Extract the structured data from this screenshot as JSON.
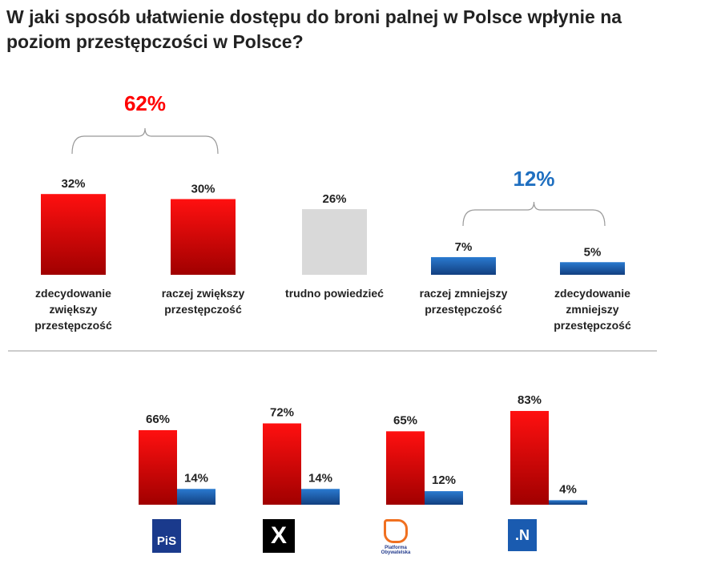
{
  "title": "W jaki sposób ułatwienie dostępu do broni palnej w Polsce wpłynie na poziom przestępczości w Polsce?",
  "chart_data": [
    {
      "type": "bar",
      "categories": [
        "zdecydowanie zwiększy przestępczość",
        "raczej zwiększy przestępczość",
        "trudno powiedzieć",
        "raczej zmniejszy przestępczość",
        "zdecydowanie zmniejszy przestępczość"
      ],
      "values": [
        32,
        30,
        26,
        7,
        5
      ],
      "value_labels": [
        "32%",
        "30%",
        "26%",
        "7%",
        "5%"
      ],
      "colors": [
        "#e00000",
        "#e00000",
        "#d9d9d9",
        "#1f5fb0",
        "#1f5fb0"
      ],
      "group_annotations": [
        {
          "label": "62%",
          "color": "#ff0000",
          "spans": [
            0,
            1
          ]
        },
        {
          "label": "12%",
          "color": "#1f6fc0",
          "spans": [
            3,
            4
          ]
        }
      ]
    },
    {
      "type": "bar",
      "categories": [
        "PiS",
        "Kukiz'15",
        "Platforma Obywatelska",
        ".N"
      ],
      "series": [
        {
          "values": [
            66,
            72,
            65,
            83
          ],
          "labels": [
            "66%",
            "72%",
            "65%",
            "83%"
          ],
          "color": "#e00000"
        },
        {
          "values": [
            14,
            14,
            12,
            4
          ],
          "labels": [
            "14%",
            "14%",
            "12%",
            "4%"
          ],
          "color": "#1f5fb0"
        }
      ],
      "logos": [
        "PiS",
        "X",
        "Platforma Obywatelska",
        ".N"
      ]
    }
  ]
}
